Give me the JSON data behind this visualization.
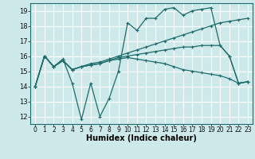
{
  "xlabel": "Humidex (Indice chaleur)",
  "xlim": [
    -0.5,
    23.5
  ],
  "ylim": [
    11.5,
    19.5
  ],
  "yticks": [
    12,
    13,
    14,
    15,
    16,
    17,
    18,
    19
  ],
  "background_color": "#cde9e9",
  "grid_color": "#ffffff",
  "line_color": "#1e6b6b",
  "series": [
    [
      14,
      16,
      15.3,
      15.8,
      14.2,
      11.8,
      14.2,
      12.0,
      13.2,
      15.0,
      18.2,
      17.7,
      18.5,
      18.5,
      19.1,
      19.2,
      18.7,
      19.0,
      19.1,
      19.2,
      16.7,
      16.0,
      14.2,
      14.3
    ],
    [
      14,
      16,
      15.3,
      15.7,
      15.1,
      15.3,
      15.5,
      15.6,
      15.8,
      16.0,
      16.2,
      16.4,
      16.6,
      16.8,
      17.0,
      17.2,
      17.4,
      17.6,
      17.8,
      18.0,
      18.2,
      18.3,
      18.4,
      18.5
    ],
    [
      14,
      16,
      15.3,
      15.7,
      15.1,
      15.3,
      15.4,
      15.5,
      15.7,
      15.8,
      15.9,
      15.8,
      15.7,
      15.6,
      15.5,
      15.3,
      15.1,
      15.0,
      14.9,
      14.8,
      14.7,
      14.5,
      14.2,
      14.3
    ],
    [
      14,
      16,
      15.3,
      15.7,
      15.1,
      15.3,
      15.4,
      15.5,
      15.7,
      15.9,
      16.0,
      16.1,
      16.2,
      16.3,
      16.4,
      16.5,
      16.6,
      16.6,
      16.7,
      16.7,
      16.7,
      16.0,
      14.2,
      14.3
    ]
  ]
}
